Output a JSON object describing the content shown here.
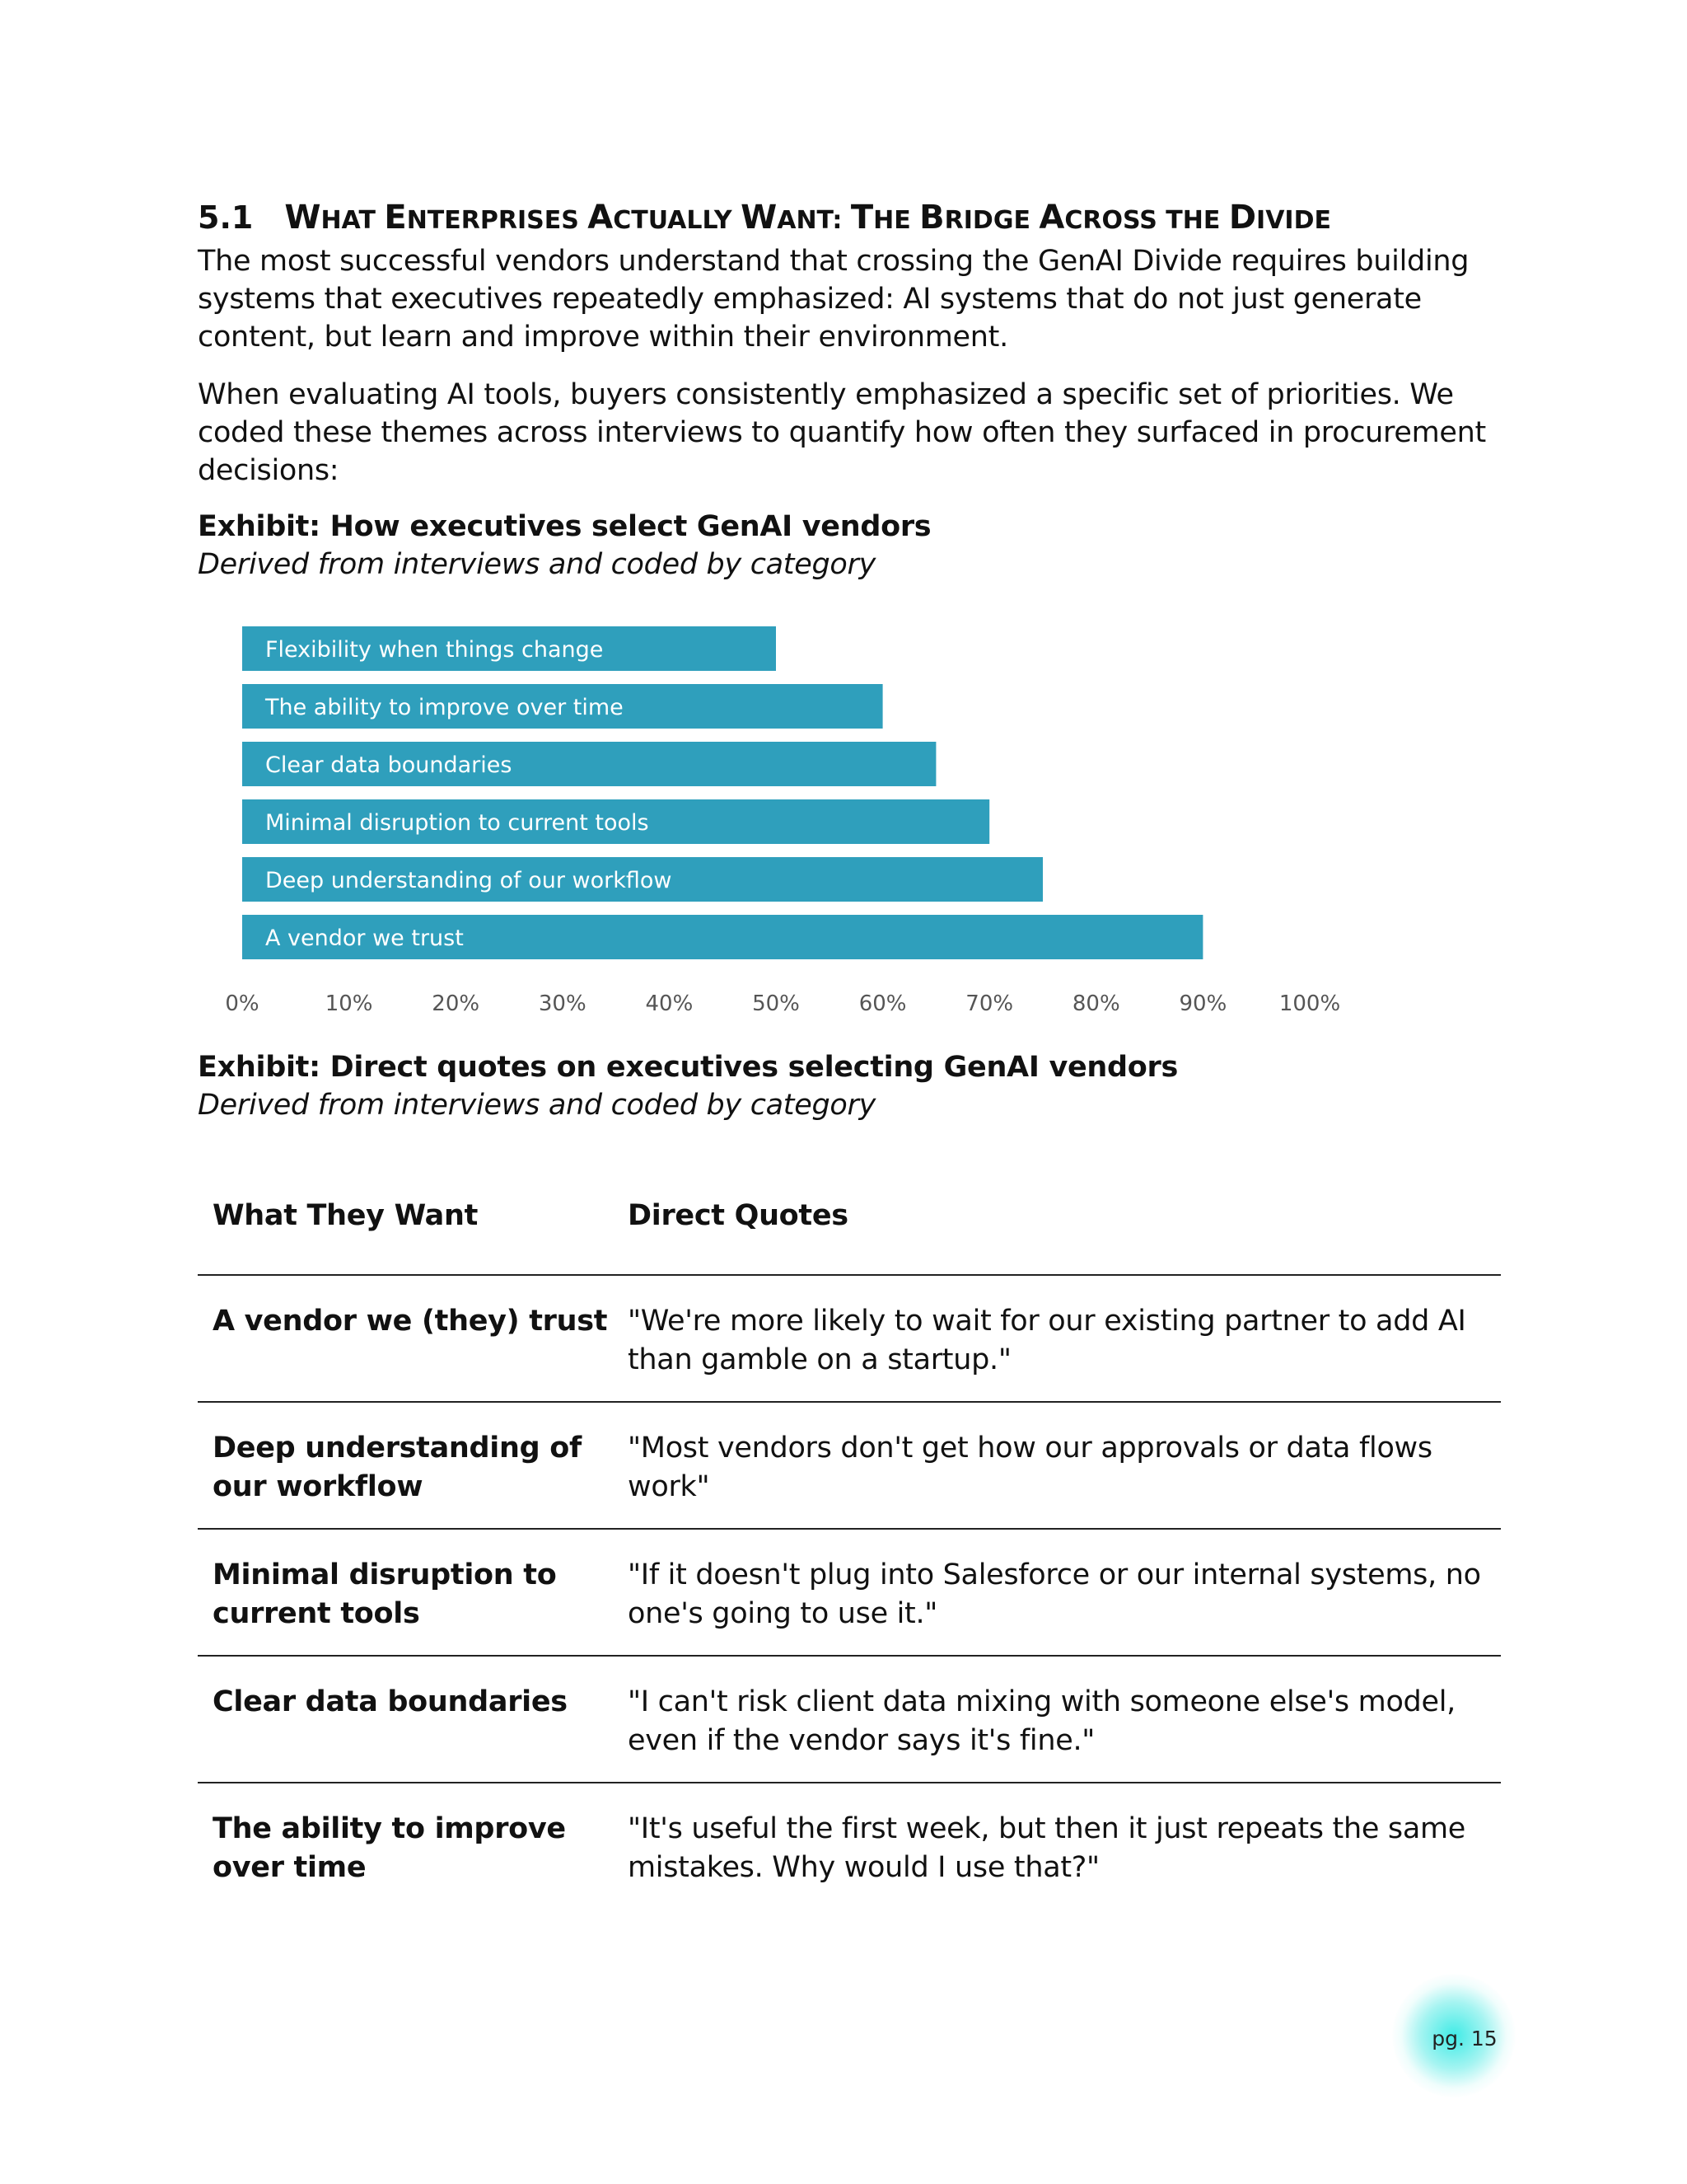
{
  "section": {
    "number": "5.1",
    "title_parts": [
      {
        "cap": "W",
        "rest": "HAT "
      },
      {
        "cap": "E",
        "rest": "NTERPRISES "
      },
      {
        "cap": "A",
        "rest": "CTUALLY "
      },
      {
        "cap": "W",
        "rest": "ANT: "
      },
      {
        "cap": "T",
        "rest": "HE "
      },
      {
        "cap": "B",
        "rest": "RIDGE "
      },
      {
        "cap": "A",
        "rest": "CROSS THE "
      },
      {
        "cap": "D",
        "rest": "IVIDE"
      }
    ]
  },
  "paragraphs": [
    "The most successful vendors understand that crossing the GenAI Divide requires building systems that executives repeatedly emphasized: AI systems that do not just generate content, but learn and improve within their environment.",
    "When evaluating AI tools, buyers consistently emphasized a specific set of priorities. We coded these themes across interviews to quantify how often they surfaced in procurement decisions:"
  ],
  "exhibit1": {
    "title": "Exhibit: How executives select GenAI vendors",
    "subtitle": "Derived from interviews and coded by category"
  },
  "chart_data": {
    "type": "bar",
    "orientation": "horizontal",
    "categories": [
      "Flexibility when things change",
      "The ability to improve over time",
      "Clear data boundaries",
      "Minimal disruption to current tools",
      "Deep understanding of our workflow",
      "A vendor we trust"
    ],
    "values": [
      50,
      60,
      65,
      70,
      75,
      90
    ],
    "xlim": [
      0,
      100
    ],
    "xticks": [
      "0%",
      "10%",
      "20%",
      "30%",
      "40%",
      "50%",
      "60%",
      "70%",
      "80%",
      "90%",
      "100%"
    ],
    "bar_color": "#2f9fbc",
    "label_color": "#ffffff",
    "grid": false,
    "title": "",
    "xlabel": "",
    "ylabel": ""
  },
  "exhibit2": {
    "title": "Exhibit: Direct quotes on executives selecting GenAI vendors",
    "subtitle": "Derived from interviews and coded by category"
  },
  "quotes_table": {
    "headers": [
      "What They Want",
      "Direct Quotes"
    ],
    "rows": [
      {
        "want": "A vendor we (they) trust",
        "quote": "\"We're more likely to wait for our existing partner to add AI than gamble on a startup.\""
      },
      {
        "want": "Deep understanding of our workflow",
        "quote": "\"Most vendors don't get how our approvals or data flows work\""
      },
      {
        "want": "Minimal disruption to current tools",
        "quote": "\"If it doesn't plug into Salesforce or our internal systems, no one's going to use it.\""
      },
      {
        "want": "Clear data boundaries",
        "quote": "\"I can't risk client data mixing with someone else's model, even if the vendor says it's fine.\""
      },
      {
        "want": "The ability to improve over time",
        "quote": "\"It's useful the first week, but then it just repeats the same mistakes. Why would I use that?\""
      }
    ]
  },
  "page_number": "pg. 15",
  "page_badge_color": "#40ebe6"
}
